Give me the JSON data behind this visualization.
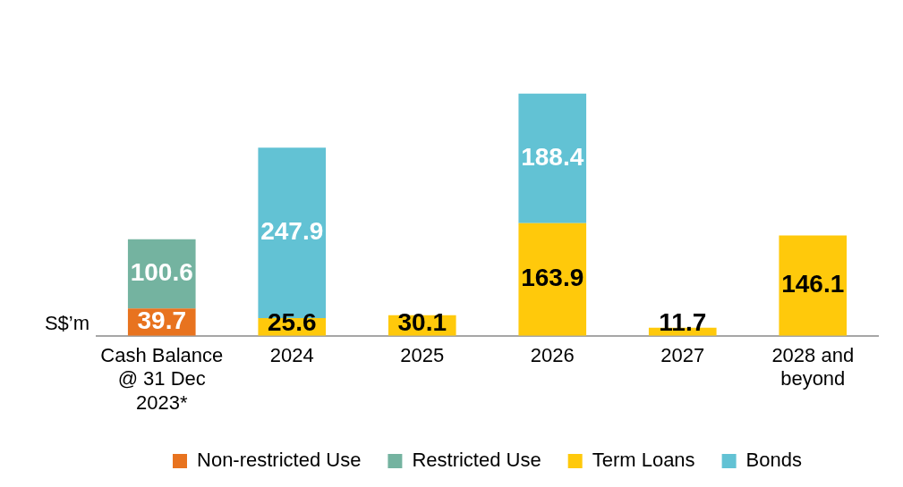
{
  "chart_data": {
    "type": "bar",
    "stacked": true,
    "ylabel": "S$’m",
    "categories": [
      "Cash Balance @ 31 Dec 2023*",
      "2024",
      "2025",
      "2026",
      "2027",
      "2028 and beyond"
    ],
    "series": [
      {
        "name": "Non-restricted Use",
        "color": "#e8731f",
        "values": [
          39.7,
          null,
          null,
          null,
          null,
          null
        ]
      },
      {
        "name": "Restricted Use",
        "color": "#74b3a0",
        "values": [
          100.6,
          null,
          null,
          null,
          null,
          null
        ]
      },
      {
        "name": "Term Loans",
        "color": "#ffc90b",
        "values": [
          null,
          25.6,
          30.1,
          163.9,
          11.7,
          146.1
        ]
      },
      {
        "name": "Bonds",
        "color": "#62c2d4",
        "values": [
          null,
          247.9,
          null,
          188.4,
          null,
          null
        ]
      }
    ],
    "data_labels": true,
    "grid": false,
    "legend": "bottom"
  }
}
